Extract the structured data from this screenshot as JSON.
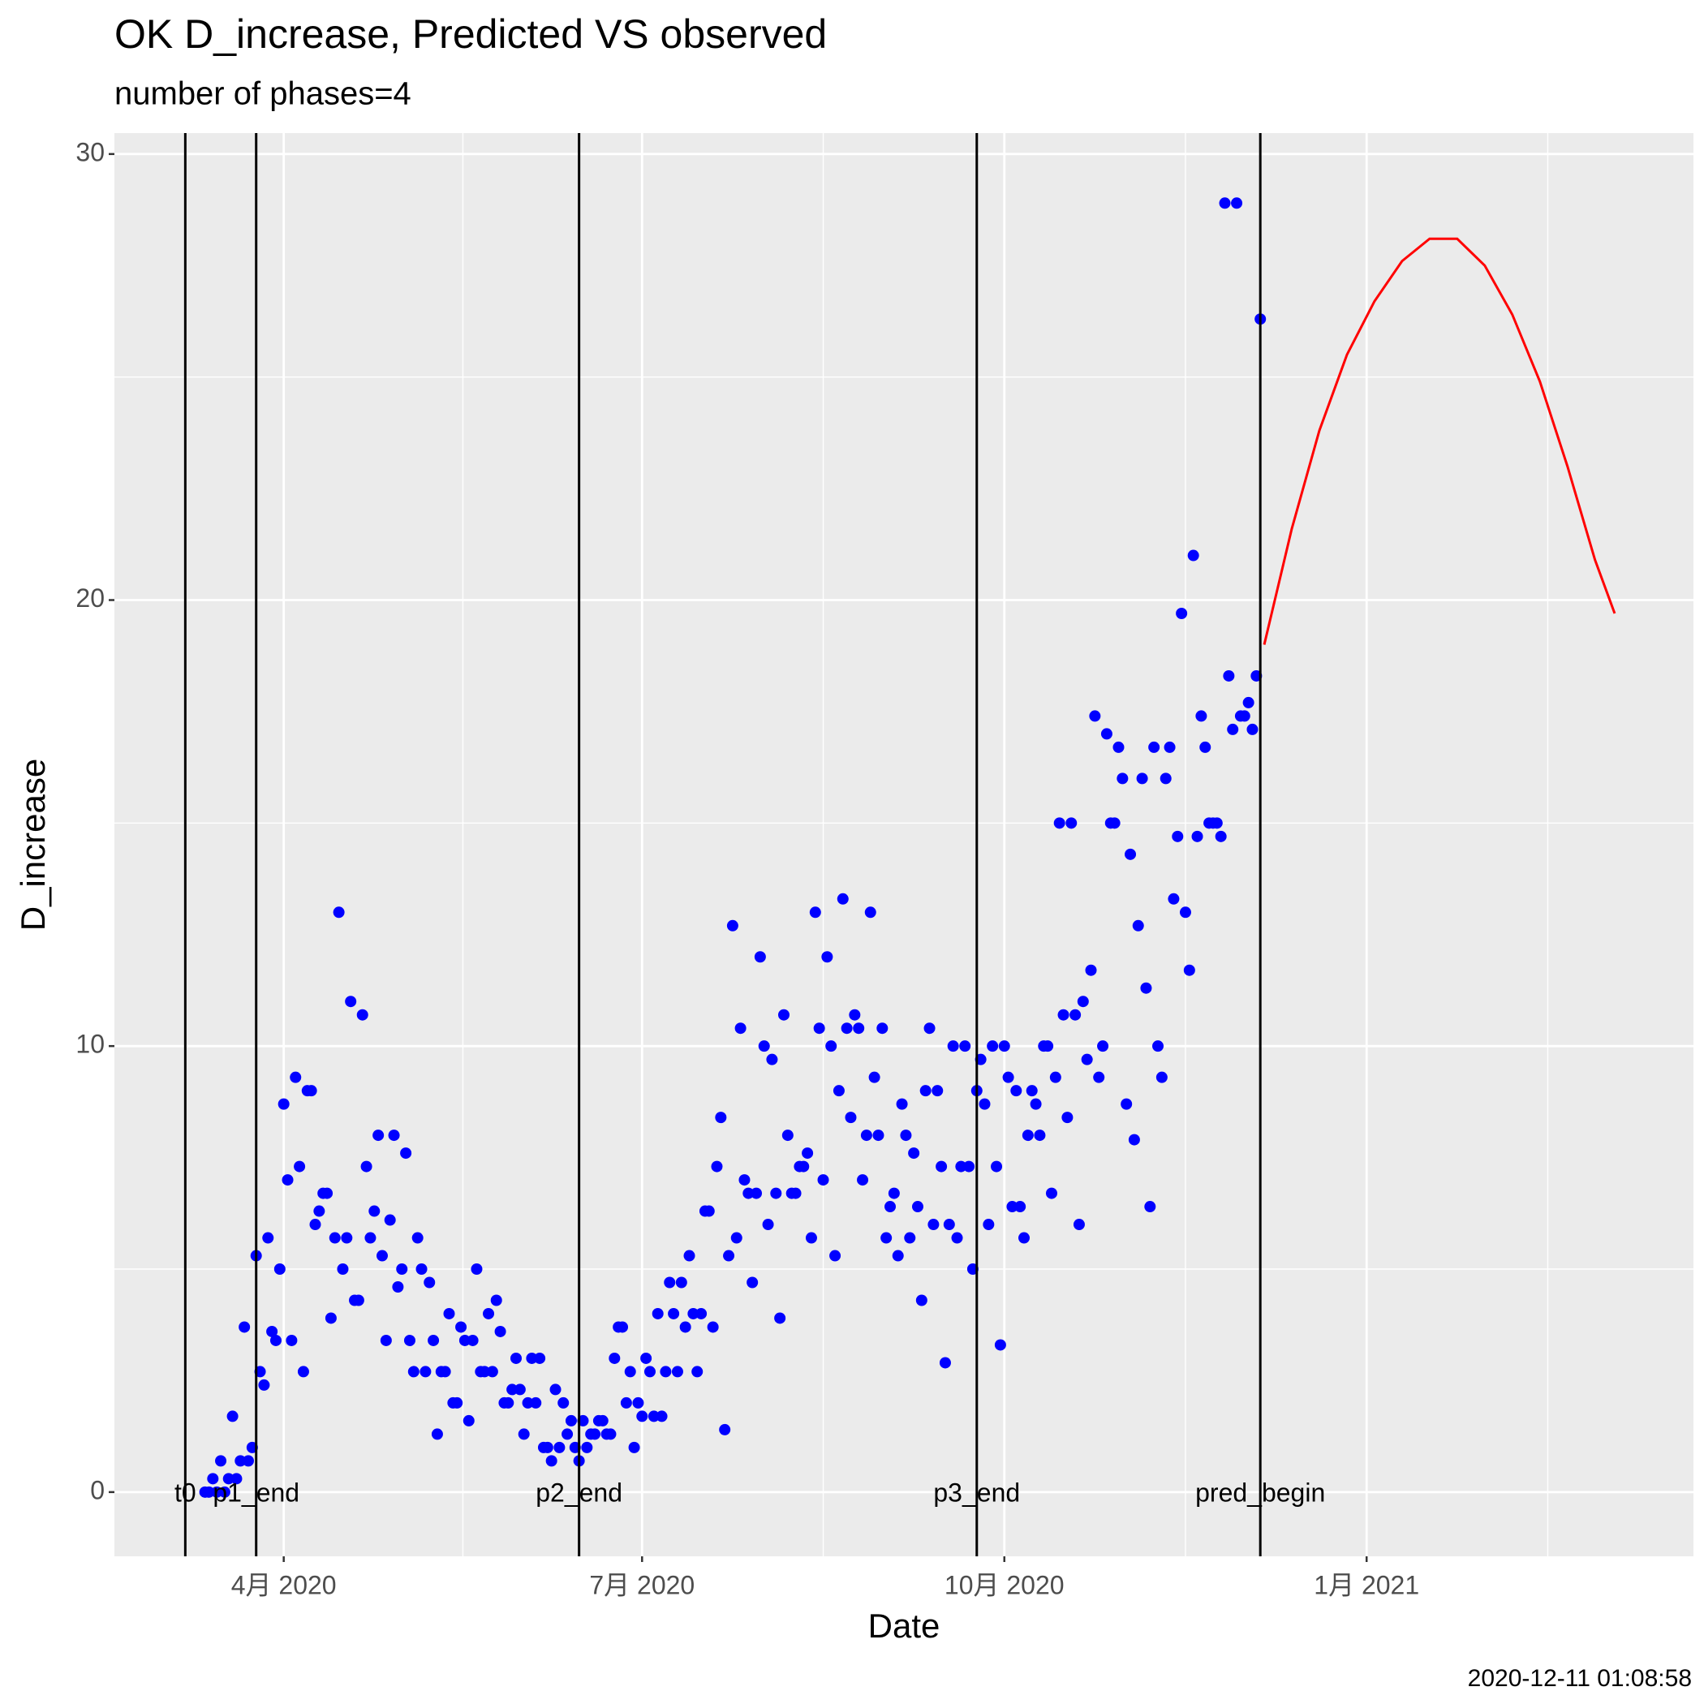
{
  "chart_data": {
    "type": "scatter",
    "title": "OK D_increase, Predicted VS observed",
    "subtitle": "number of phases=4",
    "x_label": "Date",
    "y_label": "D_increase",
    "caption": "2020-12-11 01:08:58",
    "xlim": [
      "2020-02-18",
      "2021-03-25"
    ],
    "xticks": [
      {
        "value": "2020-04-01",
        "label": "4月 2020"
      },
      {
        "value": "2020-07-01",
        "label": "7月 2020"
      },
      {
        "value": "2020-10-01",
        "label": "10月 2020"
      },
      {
        "value": "2021-01-01",
        "label": "1月 2021"
      }
    ],
    "ylim": [
      -1.44,
      30.47
    ],
    "yticks": [
      0,
      10,
      20,
      30
    ],
    "grid": true,
    "vlines": [
      {
        "x": "2020-03-07",
        "label": "t0"
      },
      {
        "x": "2020-03-25",
        "label": "p1_end"
      },
      {
        "x": "2020-06-15",
        "label": "p2_end"
      },
      {
        "x": "2020-09-24",
        "label": "p3_end"
      },
      {
        "x": "2020-12-05",
        "label": "pred_begin"
      }
    ],
    "series": [
      {
        "mark": "point",
        "color": "#0000ff",
        "x": [
          "2020-03-12",
          "2020-03-13",
          "2020-03-14",
          "2020-03-15",
          "2020-03-16",
          "2020-03-17",
          "2020-03-18",
          "2020-03-19",
          "2020-03-20",
          "2020-03-21",
          "2020-03-22",
          "2020-03-23",
          "2020-03-24",
          "2020-03-25",
          "2020-03-26",
          "2020-03-27",
          "2020-03-28",
          "2020-03-29",
          "2020-03-30",
          "2020-03-31",
          "2020-04-01",
          "2020-04-02",
          "2020-04-03",
          "2020-04-04",
          "2020-04-05",
          "2020-04-06",
          "2020-04-07",
          "2020-04-08",
          "2020-04-09",
          "2020-04-10",
          "2020-04-11",
          "2020-04-12",
          "2020-04-13",
          "2020-04-14",
          "2020-04-15",
          "2020-04-16",
          "2020-04-17",
          "2020-04-18",
          "2020-04-19",
          "2020-04-20",
          "2020-04-21",
          "2020-04-22",
          "2020-04-23",
          "2020-04-24",
          "2020-04-25",
          "2020-04-26",
          "2020-04-27",
          "2020-04-28",
          "2020-04-29",
          "2020-04-30",
          "2020-05-01",
          "2020-05-02",
          "2020-05-03",
          "2020-05-04",
          "2020-05-05",
          "2020-05-06",
          "2020-05-07",
          "2020-05-08",
          "2020-05-09",
          "2020-05-10",
          "2020-05-11",
          "2020-05-12",
          "2020-05-13",
          "2020-05-14",
          "2020-05-15",
          "2020-05-16",
          "2020-05-17",
          "2020-05-18",
          "2020-05-19",
          "2020-05-20",
          "2020-05-21",
          "2020-05-22",
          "2020-05-23",
          "2020-05-24",
          "2020-05-25",
          "2020-05-26",
          "2020-05-27",
          "2020-05-28",
          "2020-05-29",
          "2020-05-30",
          "2020-05-31",
          "2020-06-01",
          "2020-06-02",
          "2020-06-03",
          "2020-06-04",
          "2020-06-05",
          "2020-06-06",
          "2020-06-07",
          "2020-06-08",
          "2020-06-09",
          "2020-06-10",
          "2020-06-11",
          "2020-06-12",
          "2020-06-13",
          "2020-06-14",
          "2020-06-15",
          "2020-06-16",
          "2020-06-17",
          "2020-06-18",
          "2020-06-19",
          "2020-06-20",
          "2020-06-21",
          "2020-06-22",
          "2020-06-23",
          "2020-06-24",
          "2020-06-25",
          "2020-06-26",
          "2020-06-27",
          "2020-06-28",
          "2020-06-29",
          "2020-06-30",
          "2020-07-01",
          "2020-07-02",
          "2020-07-03",
          "2020-07-04",
          "2020-07-05",
          "2020-07-06",
          "2020-07-07",
          "2020-07-08",
          "2020-07-09",
          "2020-07-10",
          "2020-07-11",
          "2020-07-12",
          "2020-07-13",
          "2020-07-14",
          "2020-07-15",
          "2020-07-16",
          "2020-07-17",
          "2020-07-18",
          "2020-07-19",
          "2020-07-20",
          "2020-07-21",
          "2020-07-22",
          "2020-07-23",
          "2020-07-24",
          "2020-07-25",
          "2020-07-26",
          "2020-07-27",
          "2020-07-28",
          "2020-07-29",
          "2020-07-30",
          "2020-07-31",
          "2020-08-01",
          "2020-08-02",
          "2020-08-03",
          "2020-08-04",
          "2020-08-05",
          "2020-08-06",
          "2020-08-07",
          "2020-08-08",
          "2020-08-09",
          "2020-08-10",
          "2020-08-11",
          "2020-08-12",
          "2020-08-13",
          "2020-08-14",
          "2020-08-15",
          "2020-08-16",
          "2020-08-17",
          "2020-08-18",
          "2020-08-19",
          "2020-08-20",
          "2020-08-21",
          "2020-08-22",
          "2020-08-23",
          "2020-08-24",
          "2020-08-25",
          "2020-08-26",
          "2020-08-27",
          "2020-08-28",
          "2020-08-29",
          "2020-08-30",
          "2020-08-31",
          "2020-09-01",
          "2020-09-02",
          "2020-09-03",
          "2020-09-04",
          "2020-09-05",
          "2020-09-06",
          "2020-09-07",
          "2020-09-08",
          "2020-09-09",
          "2020-09-10",
          "2020-09-11",
          "2020-09-12",
          "2020-09-13",
          "2020-09-14",
          "2020-09-15",
          "2020-09-16",
          "2020-09-17",
          "2020-09-18",
          "2020-09-19",
          "2020-09-20",
          "2020-09-21",
          "2020-09-22",
          "2020-09-23",
          "2020-09-24",
          "2020-09-25",
          "2020-09-26",
          "2020-09-27",
          "2020-09-28",
          "2020-09-29",
          "2020-09-30",
          "2020-10-01",
          "2020-10-02",
          "2020-10-03",
          "2020-10-04",
          "2020-10-05",
          "2020-10-06",
          "2020-10-07",
          "2020-10-08",
          "2020-10-09",
          "2020-10-10",
          "2020-10-11",
          "2020-10-12",
          "2020-10-13",
          "2020-10-14",
          "2020-10-15",
          "2020-10-16",
          "2020-10-17",
          "2020-10-18",
          "2020-10-19",
          "2020-10-20",
          "2020-10-21",
          "2020-10-22",
          "2020-10-23",
          "2020-10-24",
          "2020-10-25",
          "2020-10-26",
          "2020-10-27",
          "2020-10-28",
          "2020-10-29",
          "2020-10-30",
          "2020-10-31",
          "2020-11-01",
          "2020-11-02",
          "2020-11-03",
          "2020-11-04",
          "2020-11-05",
          "2020-11-06",
          "2020-11-07",
          "2020-11-08",
          "2020-11-09",
          "2020-11-10",
          "2020-11-11",
          "2020-11-12",
          "2020-11-13",
          "2020-11-14",
          "2020-11-15",
          "2020-11-16",
          "2020-11-17",
          "2020-11-18",
          "2020-11-19",
          "2020-11-20",
          "2020-11-21",
          "2020-11-22",
          "2020-11-23",
          "2020-11-24",
          "2020-11-25",
          "2020-11-26",
          "2020-11-27",
          "2020-11-28",
          "2020-11-29",
          "2020-11-30",
          "2020-12-01",
          "2020-12-02",
          "2020-12-03",
          "2020-12-04",
          "2020-12-05"
        ],
        "values": [
          0,
          0,
          0.3,
          0,
          0.7,
          0,
          0.3,
          1.7,
          0.3,
          0.7,
          3.7,
          0.7,
          1.0,
          5.3,
          2.7,
          2.4,
          5.7,
          3.6,
          3.4,
          5.0,
          8.7,
          7.0,
          3.4,
          9.3,
          7.3,
          2.7,
          9.0,
          9.0,
          6.0,
          6.3,
          6.7,
          6.7,
          3.9,
          5.7,
          13.0,
          5.0,
          5.7,
          11.0,
          4.3,
          4.3,
          10.7,
          7.3,
          5.7,
          6.3,
          8.0,
          5.3,
          3.4,
          6.1,
          8.0,
          4.6,
          5.0,
          7.6,
          3.4,
          2.7,
          5.7,
          5.0,
          2.7,
          4.7,
          3.4,
          1.3,
          2.7,
          2.7,
          4.0,
          2.0,
          2.0,
          3.7,
          3.4,
          1.6,
          3.4,
          5.0,
          2.7,
          2.7,
          4.0,
          2.7,
          4.3,
          3.6,
          2.0,
          2.0,
          2.3,
          3.0,
          2.3,
          1.3,
          2.0,
          3.0,
          2.0,
          3.0,
          1.0,
          1.0,
          0.7,
          2.3,
          1.0,
          2.0,
          1.3,
          1.6,
          1.0,
          0.7,
          1.6,
          1.0,
          1.3,
          1.3,
          1.6,
          1.6,
          1.3,
          1.3,
          3.0,
          3.7,
          3.7,
          2.0,
          2.7,
          1.0,
          2.0,
          1.7,
          3.0,
          2.7,
          1.7,
          4.0,
          1.7,
          2.7,
          4.7,
          4.0,
          2.7,
          4.7,
          3.7,
          5.3,
          4.0,
          2.7,
          4.0,
          6.3,
          6.3,
          3.7,
          7.3,
          8.4,
          1.4,
          5.3,
          12.7,
          5.7,
          10.4,
          7.0,
          6.7,
          4.7,
          6.7,
          12.0,
          10.0,
          6.0,
          9.7,
          6.7,
          3.9,
          10.7,
          8.0,
          6.7,
          6.7,
          7.3,
          7.3,
          7.6,
          5.7,
          13.0,
          10.4,
          7.0,
          12.0,
          10.0,
          5.3,
          9.0,
          13.3,
          10.4,
          8.4,
          10.7,
          10.4,
          7.0,
          8.0,
          13.0,
          9.3,
          8.0,
          10.4,
          5.7,
          6.4,
          6.7,
          5.3,
          8.7,
          8.0,
          5.7,
          7.6,
          6.4,
          4.3,
          9.0,
          10.4,
          6.0,
          9.0,
          7.3,
          2.9,
          6.0,
          10.0,
          5.7,
          7.3,
          10.0,
          7.3,
          5.0,
          9.0,
          9.7,
          8.7,
          6.0,
          10.0,
          7.3,
          3.3,
          10.0,
          9.3,
          6.4,
          9.0,
          6.4,
          5.7,
          8.0,
          9.0,
          8.7,
          8.0,
          10.0,
          10.0,
          6.7,
          9.3,
          15.0,
          10.7,
          8.4,
          15.0,
          10.7,
          6.0,
          11.0,
          9.7,
          11.7,
          17.4,
          9.3,
          10.0,
          17.0,
          15.0,
          15.0,
          16.7,
          16.0,
          8.7,
          14.3,
          7.9,
          12.7,
          16.0,
          11.3,
          6.4,
          16.7,
          10.0,
          9.3,
          16.0,
          16.7,
          13.3,
          14.7,
          19.7,
          13.0,
          11.7,
          21.0,
          14.7,
          17.4,
          16.7,
          15.0,
          15.0,
          15.0,
          14.7,
          28.9,
          18.3,
          17.1,
          28.9,
          17.4,
          17.4,
          17.7,
          17.1,
          18.3,
          26.3
        ]
      },
      {
        "mark": "line",
        "color": "#ff0000",
        "x": [
          "2020-12-06",
          "2020-12-13",
          "2020-12-20",
          "2020-12-27",
          "2021-01-03",
          "2021-01-10",
          "2021-01-17",
          "2021-01-24",
          "2021-01-31",
          "2021-02-07",
          "2021-02-14",
          "2021-02-21",
          "2021-02-28",
          "2021-03-05"
        ],
        "values": [
          19.0,
          21.6,
          23.8,
          25.5,
          26.7,
          27.6,
          28.1,
          28.1,
          27.5,
          26.4,
          24.9,
          23.0,
          20.9,
          19.7
        ]
      }
    ]
  }
}
